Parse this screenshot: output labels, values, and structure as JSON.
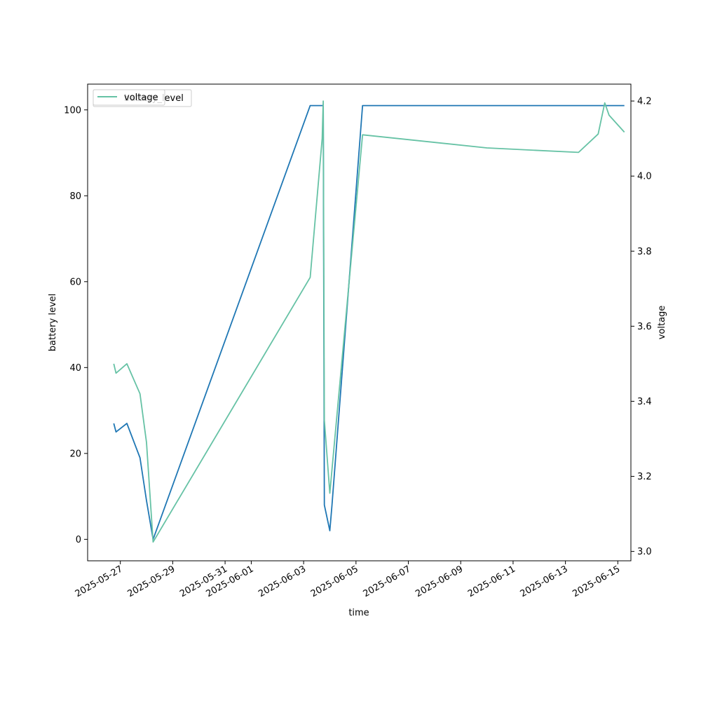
{
  "chart_data": {
    "type": "line",
    "title": "",
    "xlabel": "time",
    "ylabel": "battery level",
    "y2label": "voltage",
    "xlim": [
      "2025-05-25T18:00",
      "2025-06-15T12:00"
    ],
    "ylim": [
      -5,
      106
    ],
    "y2lim": [
      2.975,
      4.245
    ],
    "xticks": [
      "2025-05-27",
      "2025-05-29",
      "2025-05-31",
      "2025-06-01",
      "2025-06-03",
      "2025-06-05",
      "2025-06-07",
      "2025-06-09",
      "2025-06-11",
      "2025-06-13",
      "2025-06-15"
    ],
    "yticks": [
      0,
      20,
      40,
      60,
      80,
      100
    ],
    "y2ticks": [
      "3.0",
      "3.2",
      "3.4",
      "3.6",
      "3.8",
      "4.0",
      "4.2"
    ],
    "grid": false,
    "legend": {
      "position": "upper-left",
      "entries": [
        "voltage",
        "battery_level"
      ]
    },
    "series": [
      {
        "name": "battery_level",
        "axis": "left",
        "color": "#1f77b4",
        "points": [
          [
            "2025-05-26T18:00",
            27
          ],
          [
            "2025-05-26T20:00",
            25
          ],
          [
            "2025-05-27T06:00",
            27
          ],
          [
            "2025-05-27T18:00",
            19
          ],
          [
            "2025-05-28T00:00",
            9
          ],
          [
            "2025-05-28T06:00",
            0
          ],
          [
            "2025-06-03T06:00",
            101
          ],
          [
            "2025-06-03T18:00",
            101
          ],
          [
            "2025-06-03T19:00",
            8
          ],
          [
            "2025-06-04T00:00",
            2
          ],
          [
            "2025-06-04T02:00",
            8
          ],
          [
            "2025-06-05T06:00",
            101
          ],
          [
            "2025-06-15T06:00",
            101
          ]
        ]
      },
      {
        "name": "voltage",
        "axis": "right",
        "color": "#66c2a5",
        "points": [
          [
            "2025-05-26T18:00",
            3.5
          ],
          [
            "2025-05-26T20:00",
            3.475
          ],
          [
            "2025-05-27T06:00",
            3.5
          ],
          [
            "2025-05-27T18:00",
            3.42
          ],
          [
            "2025-05-28T00:00",
            3.29
          ],
          [
            "2025-05-28T06:00",
            3.025
          ],
          [
            "2025-06-03T06:00",
            3.73
          ],
          [
            "2025-06-03T17:00",
            4.1
          ],
          [
            "2025-06-03T18:00",
            4.2
          ],
          [
            "2025-06-03T19:00",
            3.35
          ],
          [
            "2025-06-04T00:00",
            3.155
          ],
          [
            "2025-06-05T06:00",
            4.11
          ],
          [
            "2025-06-10T00:00",
            4.075
          ],
          [
            "2025-06-13T12:00",
            4.063
          ],
          [
            "2025-06-14T06:00",
            4.112
          ],
          [
            "2025-06-14T12:00",
            4.195
          ],
          [
            "2025-06-14T16:00",
            4.162
          ],
          [
            "2025-06-15T06:00",
            4.117
          ]
        ]
      }
    ]
  }
}
